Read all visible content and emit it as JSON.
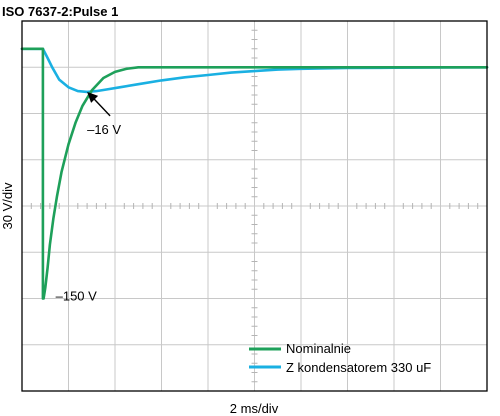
{
  "chart_data": {
    "type": "line",
    "title": "ISO 7637-2:Pulse 1",
    "xlabel": "2 ms/div",
    "ylabel": "30 V/div",
    "x_unit": "ms",
    "y_unit": "V",
    "xlim": [
      0,
      20
    ],
    "ylim": [
      -210,
      30
    ],
    "grid": true,
    "legend_position": "bottom-right",
    "series": [
      {
        "name": "Nominalnie",
        "color": "#1ea05a",
        "x": [
          0,
          0.9,
          0.9,
          0.93,
          1,
          1.1,
          1.2,
          1.35,
          1.5,
          1.7,
          2,
          2.3,
          2.6,
          3,
          3.5,
          4,
          4.5,
          5,
          5.5,
          6,
          6.5,
          7,
          8,
          9,
          10,
          12,
          14,
          16,
          18,
          20
        ],
        "y": [
          12,
          12,
          -150,
          -150,
          -143,
          -130,
          -115,
          -98,
          -84,
          -68,
          -50,
          -36,
          -25,
          -15,
          -7,
          -3,
          -1,
          0,
          0,
          0,
          0,
          0,
          0,
          0,
          0,
          0,
          0,
          0,
          0,
          0
        ]
      },
      {
        "name": "Z kondensatorem 330 uF",
        "color": "#1ab0e2",
        "x": [
          0,
          0.9,
          1.1,
          1.3,
          1.6,
          2,
          2.4,
          2.8,
          3.2,
          3.6,
          4.2,
          5,
          6,
          7,
          8,
          9,
          10,
          11,
          12,
          14,
          16,
          18,
          20
        ],
        "y": [
          12,
          12,
          6,
          0,
          -8,
          -13,
          -15.5,
          -16,
          -15.5,
          -14.5,
          -13,
          -11,
          -8.5,
          -6.5,
          -5,
          -3.5,
          -2.5,
          -1.5,
          -1,
          -0.5,
          -0.3,
          -0.1,
          0
        ]
      }
    ],
    "annotations": [
      {
        "text": "–16 V",
        "x": 2.8,
        "y": -16
      },
      {
        "text": "–150 V",
        "x": 0.93,
        "y": -150
      }
    ]
  }
}
